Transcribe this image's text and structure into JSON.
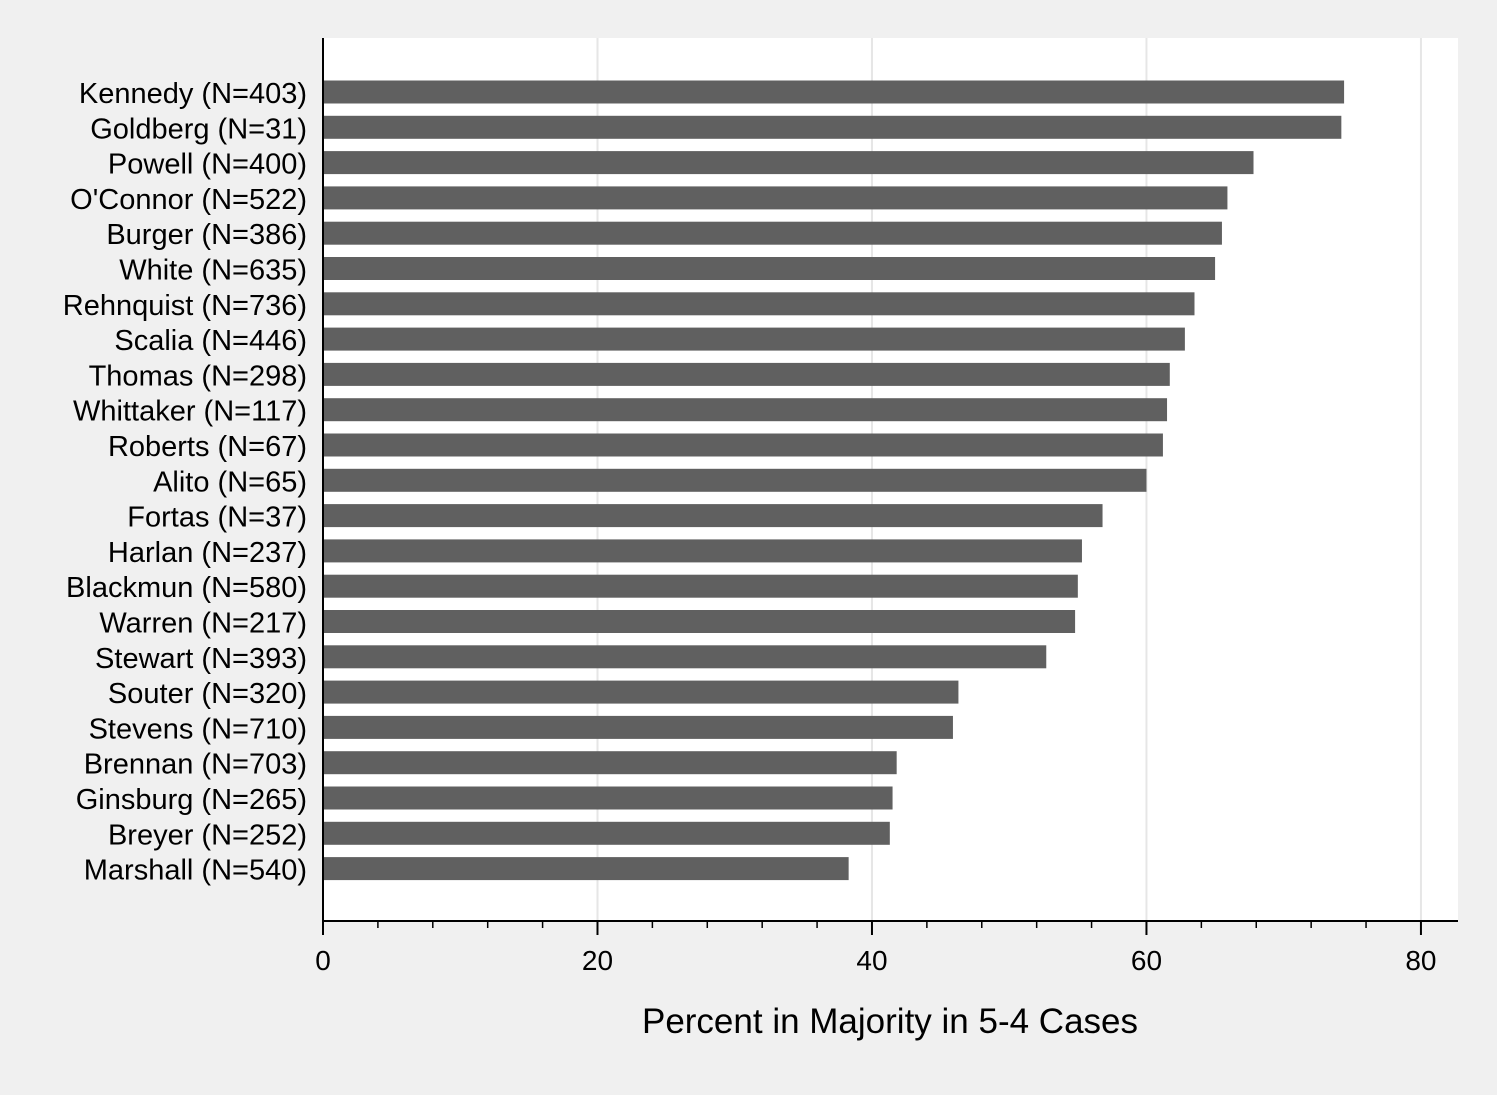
{
  "chart_data": {
    "type": "bar",
    "orientation": "horizontal",
    "title": "",
    "xlabel": "Percent in Majority in 5-4 Cases",
    "ylabel": "",
    "xlim": [
      0,
      82.7
    ],
    "xticks": [
      0,
      20,
      40,
      60,
      80
    ],
    "xtick_labels": [
      "0",
      "20",
      "40",
      "60",
      "80"
    ],
    "minor_tick_step": 4,
    "grid": "vertical major gridlines",
    "categories": [
      "Kennedy (N=403)",
      "Goldberg (N=31)",
      "Powell (N=400)",
      "O'Connor (N=522)",
      "Burger (N=386)",
      "White (N=635)",
      "Rehnquist (N=736)",
      "Scalia (N=446)",
      "Thomas (N=298)",
      "Whittaker (N=117)",
      "Roberts (N=67)",
      "Alito (N=65)",
      "Fortas (N=37)",
      "Harlan (N=237)",
      "Blackmun (N=580)",
      "Warren (N=217)",
      "Stewart (N=393)",
      "Souter (N=320)",
      "Stevens (N=710)",
      "Brennan (N=703)",
      "Ginsburg (N=265)",
      "Breyer (N=252)",
      "Marshall (N=540)"
    ],
    "values": [
      74.4,
      74.2,
      67.8,
      65.9,
      65.5,
      65.0,
      63.5,
      62.8,
      61.7,
      61.5,
      61.2,
      60.0,
      56.8,
      55.3,
      55.0,
      54.8,
      52.7,
      46.3,
      45.9,
      41.8,
      41.5,
      41.3,
      38.3
    ],
    "colors": {
      "bar": "#606060",
      "background": "#f0f0f0",
      "plot_area": "#ffffff",
      "grid": "#e6e6e6",
      "axis": "#000000"
    }
  }
}
